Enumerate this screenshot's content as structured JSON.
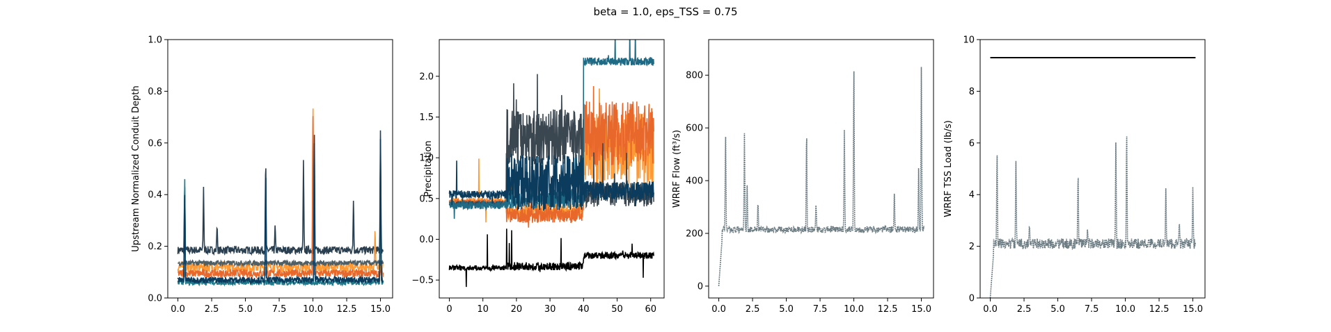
{
  "figure": {
    "title": "beta = 1.0, eps_TSS = 0.75"
  },
  "chart_data": [
    {
      "type": "line",
      "ylabel": "Upstream Normalized Conduit Depth",
      "xlim": [
        -0.75,
        15.9
      ],
      "ylim": [
        0.0,
        1.0
      ],
      "xticks": [
        0.0,
        2.5,
        5.0,
        7.5,
        10.0,
        12.5,
        15.0
      ],
      "xtick_labels": [
        "0.0",
        "2.5",
        "5.0",
        "7.5",
        "10.0",
        "12.5",
        "15.0"
      ],
      "yticks": [
        0.0,
        0.2,
        0.4,
        0.6,
        0.8,
        1.0
      ],
      "ytick_labels": [
        "0.0",
        "0.2",
        "0.4",
        "0.6",
        "0.8",
        "1.0"
      ],
      "x_range": [
        0.0,
        15.2
      ],
      "series": [
        {
          "color": "#2a3f4f",
          "base": 0.185,
          "noise": 0.015,
          "start": 0.0,
          "spikes": [
            [
              0.5,
              0.46
            ],
            [
              1.9,
              0.43
            ],
            [
              2.9,
              0.29
            ],
            [
              6.5,
              0.57
            ],
            [
              7.2,
              0.29
            ],
            [
              9.3,
              0.55
            ],
            [
              10.1,
              0.7
            ],
            [
              13.0,
              0.39
            ],
            [
              15.0,
              0.67
            ]
          ]
        },
        {
          "color": "#ff9933",
          "base": 0.12,
          "noise": 0.02,
          "start": 0.0,
          "spikes": [
            [
              10.0,
              0.81
            ],
            [
              14.6,
              0.28
            ]
          ]
        },
        {
          "color": "#e8682c",
          "base": 0.095,
          "noise": 0.015,
          "start": 0.0,
          "spikes": [
            [
              10.0,
              0.78
            ]
          ]
        },
        {
          "color": "#4f5f66",
          "base": 0.135,
          "noise": 0.01,
          "start": 0.0,
          "spikes": []
        },
        {
          "color": "#1f7a8c",
          "base": 0.06,
          "noise": 0.01,
          "start": 0.0,
          "spikes": [
            [
              0.5,
              0.51
            ],
            [
              15.0,
              0.6
            ]
          ]
        },
        {
          "color": "#0b3c5d",
          "base": 0.07,
          "noise": 0.012,
          "start": 0.0,
          "spikes": [
            [
              0.5,
              0.44
            ],
            [
              6.5,
              0.55
            ],
            [
              10.1,
              0.68
            ],
            [
              15.0,
              0.64
            ]
          ]
        }
      ]
    },
    {
      "type": "line",
      "ylabel": "Precipitation",
      "xlim": [
        -3.0,
        64.0
      ],
      "ylim": [
        -0.72,
        2.45
      ],
      "xticks": [
        0,
        10,
        20,
        30,
        40,
        50,
        60
      ],
      "xtick_labels": [
        "0",
        "10",
        "20",
        "30",
        "40",
        "50",
        "60"
      ],
      "yticks": [
        -0.5,
        0.0,
        0.5,
        1.0,
        1.5,
        2.0
      ],
      "ytick_labels": [
        "−0.5",
        "0.0",
        "0.5",
        "1.0",
        "1.5",
        "2.0"
      ],
      "x_range": [
        0,
        61
      ],
      "series": [
        {
          "color": "#ff9933",
          "segments": [
            [
              0,
              17,
              0.47,
              0.04
            ],
            [
              17,
              40,
              0.35,
              0.1
            ],
            [
              40,
              61,
              1.1,
              0.45
            ]
          ]
        },
        {
          "color": "#e8682c",
          "segments": [
            [
              0,
              17,
              0.45,
              0.04
            ],
            [
              17,
              40,
              0.3,
              0.1
            ],
            [
              40,
              61,
              1.3,
              0.4
            ]
          ]
        },
        {
          "color": "#3a4650",
          "segments": [
            [
              0,
              17,
              0.44,
              0.03
            ],
            [
              17,
              40,
              1.25,
              0.35
            ],
            [
              40,
              61,
              0.55,
              0.15
            ]
          ]
        },
        {
          "color": "#1f6b85",
          "segments": [
            [
              0,
              17,
              0.42,
              0.05
            ],
            [
              17,
              40,
              0.5,
              0.12
            ],
            [
              40,
              61,
              2.18,
              0.05
            ]
          ]
        },
        {
          "color": "#0b3c5d",
          "segments": [
            [
              0,
              17,
              0.55,
              0.05
            ],
            [
              17,
              40,
              0.7,
              0.35
            ],
            [
              40,
              61,
              0.6,
              0.12
            ]
          ]
        },
        {
          "color": "#000000",
          "segments": [
            [
              0,
              17,
              -0.35,
              0.03
            ],
            [
              17,
              40,
              -0.33,
              0.05
            ],
            [
              40,
              61,
              -0.2,
              0.04
            ]
          ]
        }
      ]
    },
    {
      "type": "line",
      "ylabel": "WRRF Flow (ft³/s)",
      "xlim": [
        -0.75,
        15.9
      ],
      "ylim": [
        -45,
        935
      ],
      "xticks": [
        0.0,
        2.5,
        5.0,
        7.5,
        10.0,
        12.5,
        15.0
      ],
      "xtick_labels": [
        "0.0",
        "2.5",
        "5.0",
        "7.5",
        "10.0",
        "12.5",
        "15.0"
      ],
      "yticks": [
        0,
        200,
        400,
        600,
        800
      ],
      "ytick_labels": [
        "0",
        "200",
        "400",
        "600",
        "800"
      ],
      "x_range": [
        0.0,
        15.2
      ],
      "series": [
        {
          "color": "#6b7b82",
          "base": 215,
          "noise": 12,
          "start": 0.0,
          "rise": true,
          "spikes": [
            [
              0.5,
              610
            ],
            [
              1.9,
              580
            ],
            [
              2.1,
              390
            ],
            [
              2.9,
              330
            ],
            [
              6.5,
              635
            ],
            [
              7.2,
              315
            ],
            [
              9.3,
              610
            ],
            [
              10.0,
              890
            ],
            [
              13.0,
              360
            ],
            [
              14.8,
              470
            ],
            [
              15.0,
              860
            ]
          ]
        }
      ]
    },
    {
      "type": "line",
      "ylabel": "WRRF TSS Load (lb/s)",
      "xlim": [
        -0.75,
        15.9
      ],
      "ylim": [
        0,
        10
      ],
      "xticks": [
        0.0,
        2.5,
        5.0,
        7.5,
        10.0,
        12.5,
        15.0
      ],
      "xtick_labels": [
        "0.0",
        "2.5",
        "5.0",
        "7.5",
        "10.0",
        "12.5",
        "15.0"
      ],
      "yticks": [
        0,
        2,
        4,
        6,
        8,
        10
      ],
      "ytick_labels": [
        "0",
        "2",
        "4",
        "6",
        "8",
        "10"
      ],
      "x_range": [
        0.0,
        15.2
      ],
      "threshold": 9.3,
      "series": [
        {
          "color": "#6b7b82",
          "base": 2.1,
          "noise": 0.2,
          "start": 0.0,
          "rise": true,
          "spikes": [
            [
              0.5,
              5.95
            ],
            [
              1.9,
              5.3
            ],
            [
              2.9,
              2.9
            ],
            [
              6.5,
              5.2
            ],
            [
              7.2,
              2.7
            ],
            [
              9.3,
              6.2
            ],
            [
              10.1,
              6.9
            ],
            [
              13.0,
              4.4
            ],
            [
              14.0,
              3.0
            ],
            [
              15.0,
              4.4
            ]
          ]
        },
        {
          "color": "#000000",
          "threshold_line": true
        }
      ]
    }
  ]
}
